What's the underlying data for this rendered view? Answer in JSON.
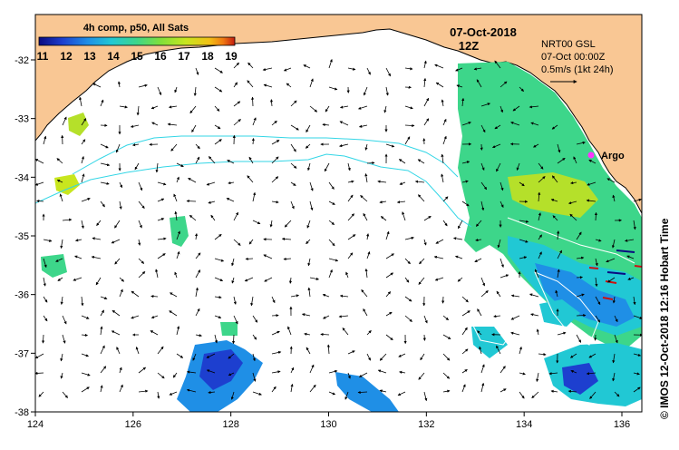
{
  "map": {
    "colorbar": {
      "title": "4h comp, p50, All Sats",
      "ticks": [
        "11",
        "12",
        "13",
        "14",
        "15",
        "16",
        "17",
        "18",
        "19"
      ],
      "colors": [
        "#0a0a80",
        "#1d3fcf",
        "#1f8fe6",
        "#21c8d4",
        "#3dd68a",
        "#7fe03b",
        "#c8e61e",
        "#f2c014",
        "#f07a12",
        "#c41c10"
      ]
    },
    "date": "07-Oct-2018",
    "hour": "12Z",
    "info_line1": "NRT00 GSL",
    "info_line2": "07-Oct 00:00Z",
    "info_line3": "0.5m/s (1kt 24h)",
    "argo_label": "Argo",
    "credit": "©  IMOS 12-Oct-2018 12:16 Hobart Time",
    "x_ticks": [
      "124",
      "126",
      "128",
      "130",
      "132",
      "134",
      "136"
    ],
    "y_ticks": [
      "-32",
      "-33",
      "-34",
      "-35",
      "-36",
      "-37",
      "-38"
    ],
    "colors": {
      "land": "#f9c794",
      "ocean": "#ffffff",
      "contour": "#33d6e6",
      "argo": "#ff33ff",
      "arrow": "#000000"
    }
  }
}
